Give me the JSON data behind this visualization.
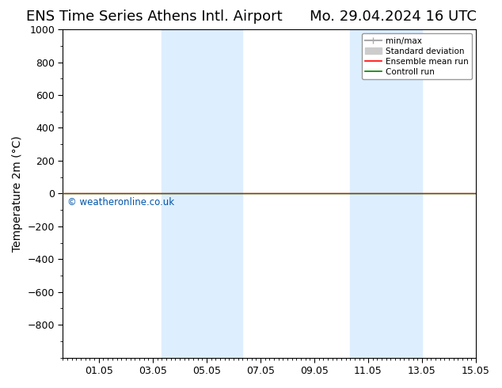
{
  "title_left": "ENS Time Series Athens Intl. Airport",
  "title_right": "Mo. 29.04.2024 16 UTC",
  "ylabel": "Temperature 2m (°C)",
  "watermark": "© weatheronline.co.uk",
  "ylim_top": -1000,
  "ylim_bottom": 1000,
  "yticks": [
    -800,
    -600,
    -400,
    -200,
    0,
    200,
    400,
    600,
    800,
    1000
  ],
  "xtick_labels": [
    "01.05",
    "03.05",
    "05.05",
    "07.05",
    "09.05",
    "11.05",
    "13.05",
    "15.05"
  ],
  "x_min": 0.0,
  "x_max": 15.333,
  "shaded_bands": [
    {
      "x_start": 3.667,
      "x_end": 5.333,
      "color": "#ddeeff"
    },
    {
      "x_start": 5.333,
      "x_end": 6.667,
      "color": "#ddeeff"
    },
    {
      "x_start": 10.667,
      "x_end": 12.333,
      "color": "#ddeeff"
    },
    {
      "x_start": 12.333,
      "x_end": 13.333,
      "color": "#ddeeff"
    }
  ],
  "control_run_y": 0.0,
  "ensemble_mean_y": 0.0,
  "legend_items": [
    {
      "label": "min/max",
      "color": "#aaaaaa",
      "lw": 1.5
    },
    {
      "label": "Standard deviation",
      "color": "#cccccc",
      "lw": 6
    },
    {
      "label": "Ensemble mean run",
      "color": "red",
      "lw": 1.2
    },
    {
      "label": "Controll run",
      "color": "green",
      "lw": 1.2
    }
  ],
  "background_color": "#ffffff",
  "plot_bg_color": "#ffffff",
  "title_fontsize": 13,
  "axis_fontsize": 10,
  "tick_fontsize": 9,
  "watermark_color": "#0055aa",
  "border_color": "#000000"
}
